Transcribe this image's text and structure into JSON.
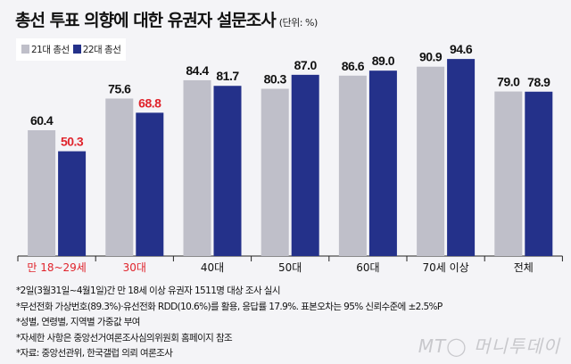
{
  "title": "총선 투표 의향에 대한 유권자 설문조사",
  "unit": "(단위: %)",
  "chart_data": {
    "type": "bar",
    "categories": [
      "만 18~29세",
      "30대",
      "40대",
      "50대",
      "60대",
      "70세 이상",
      "전체"
    ],
    "series": [
      {
        "name": "21대 총선",
        "values": [
          60.4,
          75.6,
          84.4,
          80.3,
          86.6,
          90.9,
          79.0
        ]
      },
      {
        "name": "22대 총선",
        "values": [
          50.3,
          68.8,
          81.7,
          87.0,
          89.0,
          94.6,
          78.9
        ]
      }
    ],
    "ylim": [
      0,
      100
    ],
    "grid": false,
    "legend": "top-left",
    "highlight_categories": [
      "만 18~29세",
      "30대"
    ],
    "colors": {
      "series1": "#bfbfc9",
      "series2": "#24318a",
      "highlight": "#e0232b"
    }
  },
  "notes": [
    "*2일(3월31일~4월1일)간 만 18세 이상 유권자 1511명 대상 조사 실시",
    "*무선전화 가상번호(89.3%)·유선전화 RDD(10.6%)를 활용, 응답률 17.9%. 표본오차는 95% 신뢰수준에 ±2.5%P",
    "*성별, 연령별, 지역별 가중값 부여",
    "*자세한 사항은 중앙선거여론조사심의위원회 홈페이지 참조",
    "*자료: 중앙선관위, 한국갤럽 의뢰 여론조사"
  ],
  "logo": "MT 머니투데이"
}
